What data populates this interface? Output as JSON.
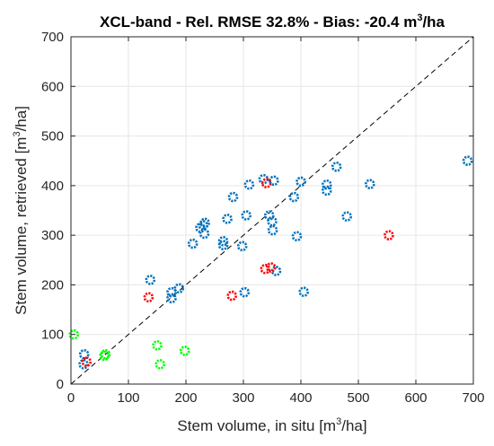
{
  "chart_data": {
    "type": "scatter",
    "title": {
      "prefix": "XCL-band - Rel. RMSE 32.8% - Bias: -20.4 m",
      "sup": "3",
      "suffix": "/ha"
    },
    "xlabel": {
      "prefix": "Stem volume, in situ  [m",
      "sup": "3",
      "suffix": "/ha]"
    },
    "ylabel": {
      "prefix": "Stem volume, retrieved  [m",
      "sup": "3",
      "suffix": "/ha]"
    },
    "xlim": [
      0,
      700
    ],
    "ylim": [
      0,
      700
    ],
    "xticks": [
      "0",
      "100",
      "200",
      "300",
      "400",
      "500",
      "600",
      "700"
    ],
    "yticks": [
      "0",
      "100",
      "200",
      "300",
      "400",
      "500",
      "600",
      "700"
    ],
    "grid": true,
    "reference_line": {
      "style": "dashed",
      "from": [
        0,
        0
      ],
      "to": [
        700,
        700
      ]
    },
    "series": [
      {
        "color": "#0072bd",
        "points": [
          [
            22,
            40
          ],
          [
            23,
            60
          ],
          [
            138,
            210
          ],
          [
            175,
            185
          ],
          [
            175,
            173
          ],
          [
            188,
            193
          ],
          [
            212,
            283
          ],
          [
            225,
            315
          ],
          [
            232,
            303
          ],
          [
            233,
            325
          ],
          [
            230,
            320
          ],
          [
            265,
            288
          ],
          [
            265,
            280
          ],
          [
            272,
            333
          ],
          [
            282,
            377
          ],
          [
            298,
            278
          ],
          [
            302,
            185
          ],
          [
            305,
            340
          ],
          [
            310,
            402
          ],
          [
            335,
            413
          ],
          [
            345,
            340
          ],
          [
            350,
            328
          ],
          [
            351,
            310
          ],
          [
            353,
            410
          ],
          [
            357,
            228
          ],
          [
            388,
            377
          ],
          [
            393,
            298
          ],
          [
            400,
            408
          ],
          [
            405,
            186
          ],
          [
            445,
            402
          ],
          [
            445,
            390
          ],
          [
            462,
            438
          ],
          [
            480,
            338
          ],
          [
            520,
            403
          ],
          [
            690,
            450
          ]
        ]
      },
      {
        "color": "#ff0000",
        "points": [
          [
            27,
            45
          ],
          [
            135,
            175
          ],
          [
            280,
            178
          ],
          [
            338,
            232
          ],
          [
            340,
            405
          ],
          [
            348,
            235
          ],
          [
            553,
            300
          ]
        ]
      },
      {
        "color": "#00ff00",
        "points": [
          [
            5,
            100
          ],
          [
            58,
            57
          ],
          [
            60,
            60
          ],
          [
            150,
            78
          ],
          [
            155,
            40
          ],
          [
            198,
            67
          ]
        ]
      }
    ]
  }
}
